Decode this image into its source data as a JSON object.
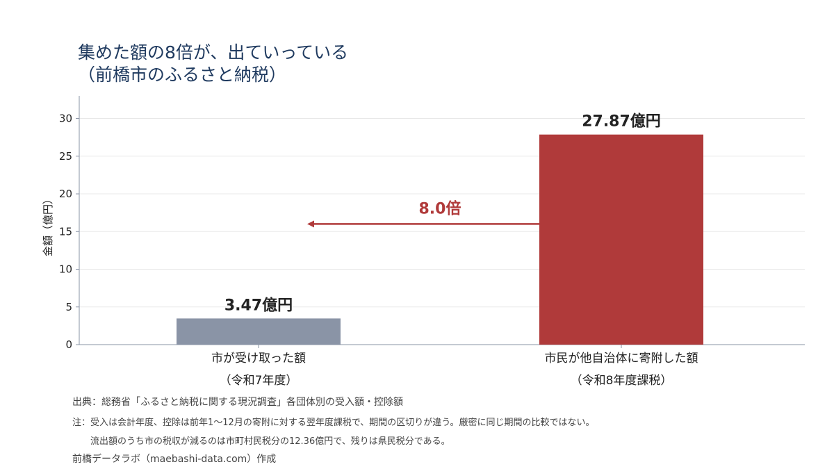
{
  "title": {
    "line1": "集めた額の8倍が、出ていっている",
    "line2": "（前橋市のふるさと納税）"
  },
  "chart_data": {
    "type": "bar",
    "categories": [
      [
        "市が受け取った額",
        "（令和7年度）"
      ],
      [
        "市民が他自治体に寄附した額",
        "（令和8年度課税）"
      ]
    ],
    "values": [
      3.47,
      27.87
    ],
    "data_labels": [
      "3.47億円",
      "27.87億円"
    ],
    "colors": [
      "#8a94a6",
      "#b03a3a"
    ],
    "ylabel": "金額（億円）",
    "ylim": [
      0,
      33
    ],
    "yticks": [
      0,
      5,
      10,
      15,
      20,
      25,
      30
    ],
    "grid": true,
    "annotation": {
      "text": "8.0倍",
      "value": 16,
      "color": "#b03a3a"
    }
  },
  "notes": {
    "source": "出典：総務省「ふるさと納税に関する現況調査」各団体別の受入額・控除額",
    "note1": "注：受入は会計年度、控除は前年1〜12月の寄附に対する翌年度課税で、期間の区切りが違う。厳密に同じ期間の比較ではない。",
    "note2": "流出額のうち市の税収が減るのは市町村民税分の12.36億円で、残りは県民税分である。",
    "credit": "前橋データラボ（maebashi-data.com）作成"
  }
}
